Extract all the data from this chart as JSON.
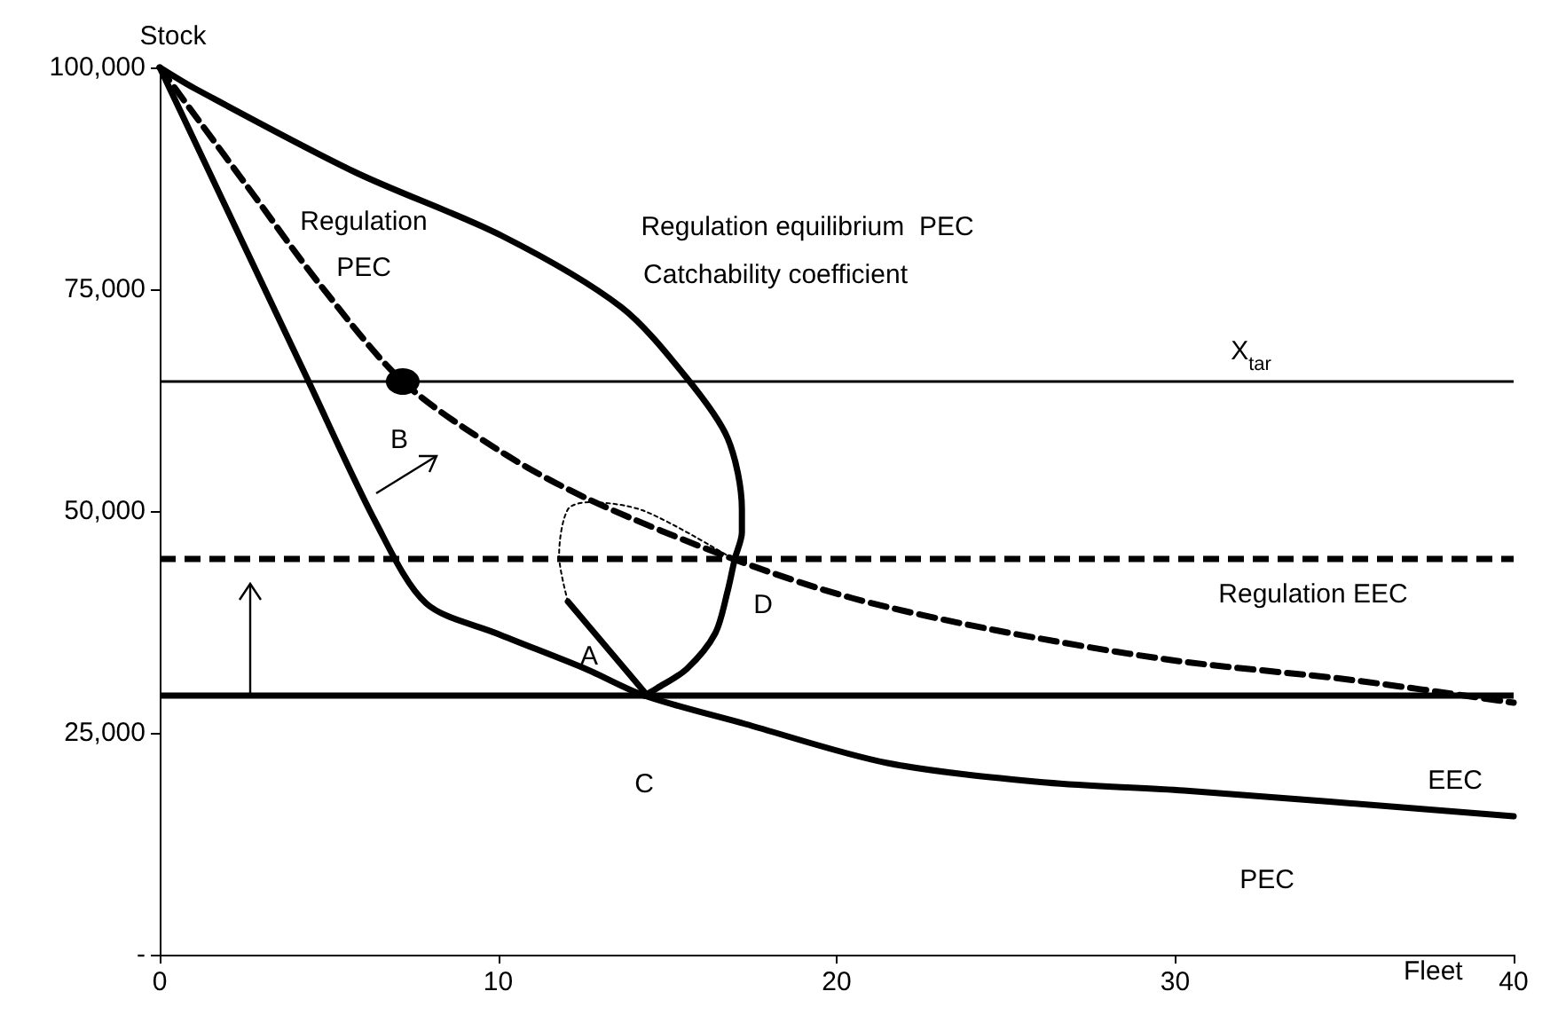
{
  "chart_data": {
    "type": "line",
    "xlabel": "Fleet",
    "ylabel": "Stock",
    "xlim": [
      0,
      40
    ],
    "xticks": [
      0,
      10,
      20,
      30,
      40
    ],
    "ylim": [
      0,
      100000
    ],
    "yticks": [
      {
        "value": 0,
        "label": "-"
      },
      {
        "value": 25000,
        "label": "25,000"
      },
      {
        "value": 50000,
        "label": "50,000"
      },
      {
        "value": 75000,
        "label": "75,000"
      },
      {
        "value": 100000,
        "label": "100,000"
      }
    ],
    "grid": false,
    "marker": "none",
    "series": [
      {
        "color": "#000000",
        "line_style": "solid",
        "x": [
          0,
          1.05,
          5.77,
          10.12,
          13.63,
          15.57,
          16.78,
          17.2,
          17.2,
          16.99,
          16.78,
          16.41,
          15.57,
          14.68,
          14.32
        ],
        "values": [
          100000,
          97600,
          88200,
          81000,
          73000,
          65000,
          58200,
          50200,
          47600,
          44600,
          41000,
          36200,
          32200,
          30000,
          29200
        ]
      },
      {
        "color": "#000000",
        "line_style": "dashed",
        "x": [
          0,
          2.78,
          4.72,
          7.18,
          10.12,
          12.74,
          16.94,
          20.45,
          24.65,
          29.89,
          35.13,
          40
        ],
        "values": [
          100000,
          85600,
          75600,
          64600,
          56600,
          51200,
          44600,
          40200,
          36600,
          33200,
          31000,
          28400
        ]
      },
      {
        "color": "#000000",
        "line_style": "solid",
        "x": [
          0,
          4.35,
          6.4,
          7.87,
          9.96,
          12.59,
          14.32,
          17.3,
          21.5,
          26.2,
          30.26,
          40
        ],
        "values": [
          100000,
          65000,
          48600,
          39600,
          36200,
          32200,
          29200,
          26000,
          21600,
          19400,
          18500,
          15600
        ]
      },
      {
        "color": "#000000",
        "line_style": "solid",
        "x": [
          12.06,
          14.32
        ],
        "values": [
          39800,
          29600
        ]
      },
      {
        "color": "#000000",
        "line_style": "dotted",
        "x": [
          12.06,
          11.8,
          12.06,
          12.69,
          14.32,
          16.94
        ],
        "values": [
          39800,
          45000,
          50200,
          51000,
          50000,
          44600
        ]
      },
      {
        "type": "scatter",
        "marker": "circle",
        "color": "#000000",
        "x": [
          7.18
        ],
        "values": [
          64600
        ]
      }
    ],
    "ref_lines": [
      {
        "axis": "y",
        "value": 64600,
        "color": "#000000",
        "line_style": "solid",
        "label": "X$_{tar}$"
      },
      {
        "axis": "y",
        "value": 44600,
        "color": "#000000",
        "line_style": "dashed",
        "label": "Regulation EEC"
      },
      {
        "axis": "y",
        "value": 29200,
        "color": "#000000",
        "line_style": "solid"
      }
    ],
    "annotations": [
      "Regulation\nPEC",
      "Regulation equilibrium  PEC",
      "Catchability coefficient",
      "B",
      "A",
      "C",
      "D",
      "EEC",
      "PEC"
    ]
  }
}
